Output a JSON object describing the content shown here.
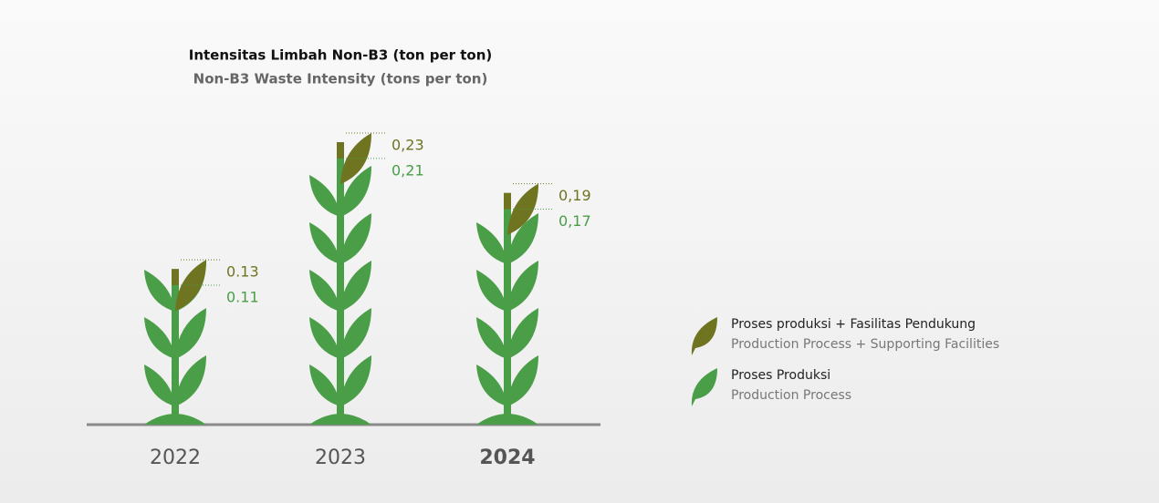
{
  "chart_data": {
    "type": "plant",
    "title": "Intensitas Limbah Non-B3 (ton per ton)",
    "subtitle": "Non-B3 Waste Intensity (tons per ton)",
    "categories": [
      "2022",
      "2023",
      "2024"
    ],
    "series": [
      {
        "name": "Proses produksi + Fasilitas Pendukung",
        "subname": "Production Process + Supporting Facilities",
        "color": "#6f7420",
        "values": [
          0.13,
          0.23,
          0.19
        ],
        "value_labels": [
          "0.13",
          "0,23",
          "0,19"
        ]
      },
      {
        "name": "Proses Produksi",
        "subname": "Production Process",
        "color": "#4a9e48",
        "values": [
          0.11,
          0.21,
          0.17
        ],
        "value_labels": [
          "0.11",
          "0,21",
          "0,17"
        ]
      }
    ]
  }
}
